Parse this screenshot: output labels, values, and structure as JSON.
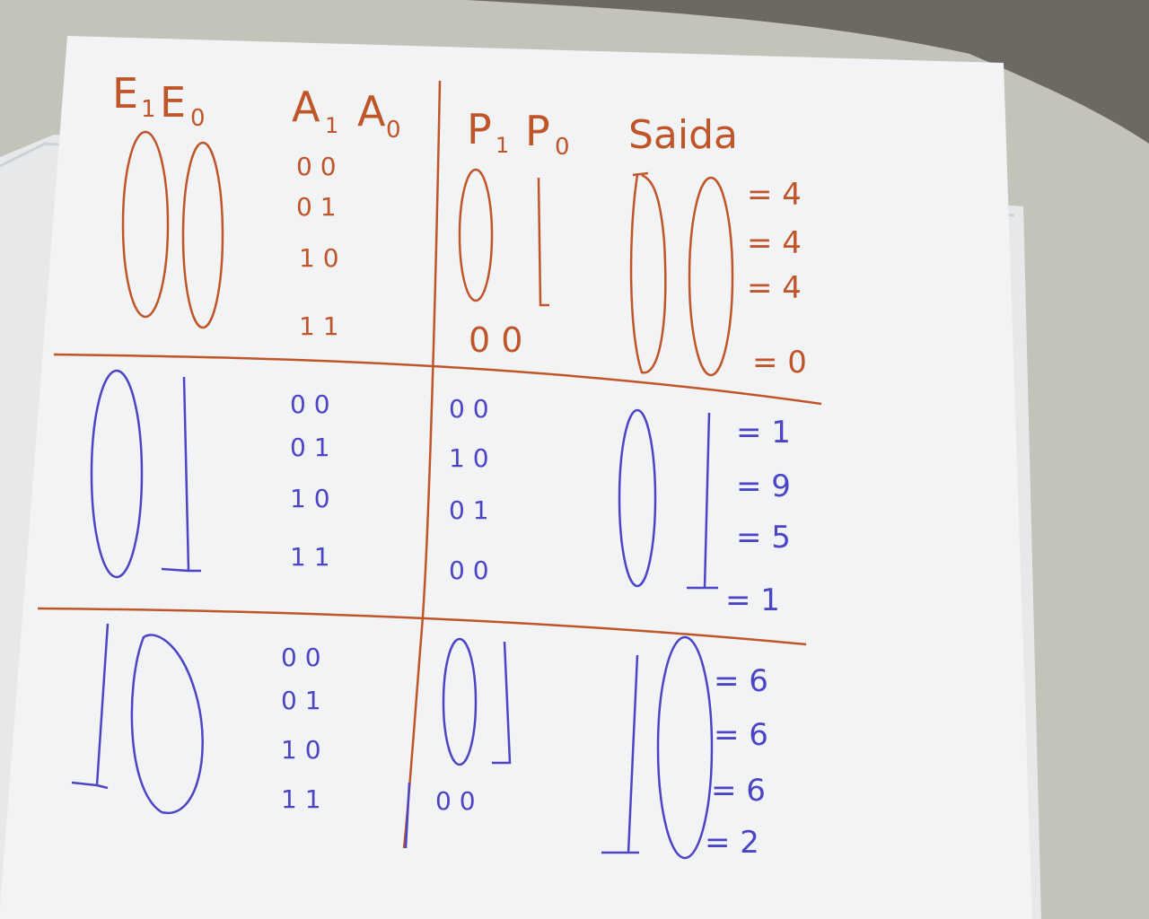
{
  "headers": {
    "e1": "E",
    "e1_sub": "1",
    "e0": "E",
    "e0_sub": "0",
    "a1": "A",
    "a1_sub": "1",
    "a0": "A",
    "a0_sub": "0",
    "p1": "P",
    "p1_sub": "1",
    "p0": "P",
    "p0_sub": "0",
    "saida": "Saida"
  },
  "sections": [
    {
      "color": "#c0552a",
      "a_rows": [
        "0 0",
        "0 1",
        "1 0",
        "1 1"
      ],
      "p_rows": [
        "0 0"
      ],
      "results": [
        "= 4",
        "= 4",
        "= 4",
        "= 0"
      ]
    },
    {
      "color": "#4b45c6",
      "a_rows": [
        "0 0",
        "0 1",
        "1 0",
        "1 1"
      ],
      "p_rows": [
        "0 0",
        "1 0",
        "0 1",
        "0 0"
      ],
      "results": [
        "= 1",
        "= 9",
        "= 5",
        "= 1"
      ]
    },
    {
      "color": "#4b45c6",
      "a_rows": [
        "0 0",
        "0 1",
        "1 0",
        "1 1"
      ],
      "p_rows": [
        "0 0"
      ],
      "results": [
        "= 6",
        "= 6",
        "= 6",
        "= 2"
      ]
    }
  ],
  "colors": {
    "orange_ink": "#c0552a",
    "blue_ink": "#4b45c6",
    "paper": "#f2f3f4"
  }
}
